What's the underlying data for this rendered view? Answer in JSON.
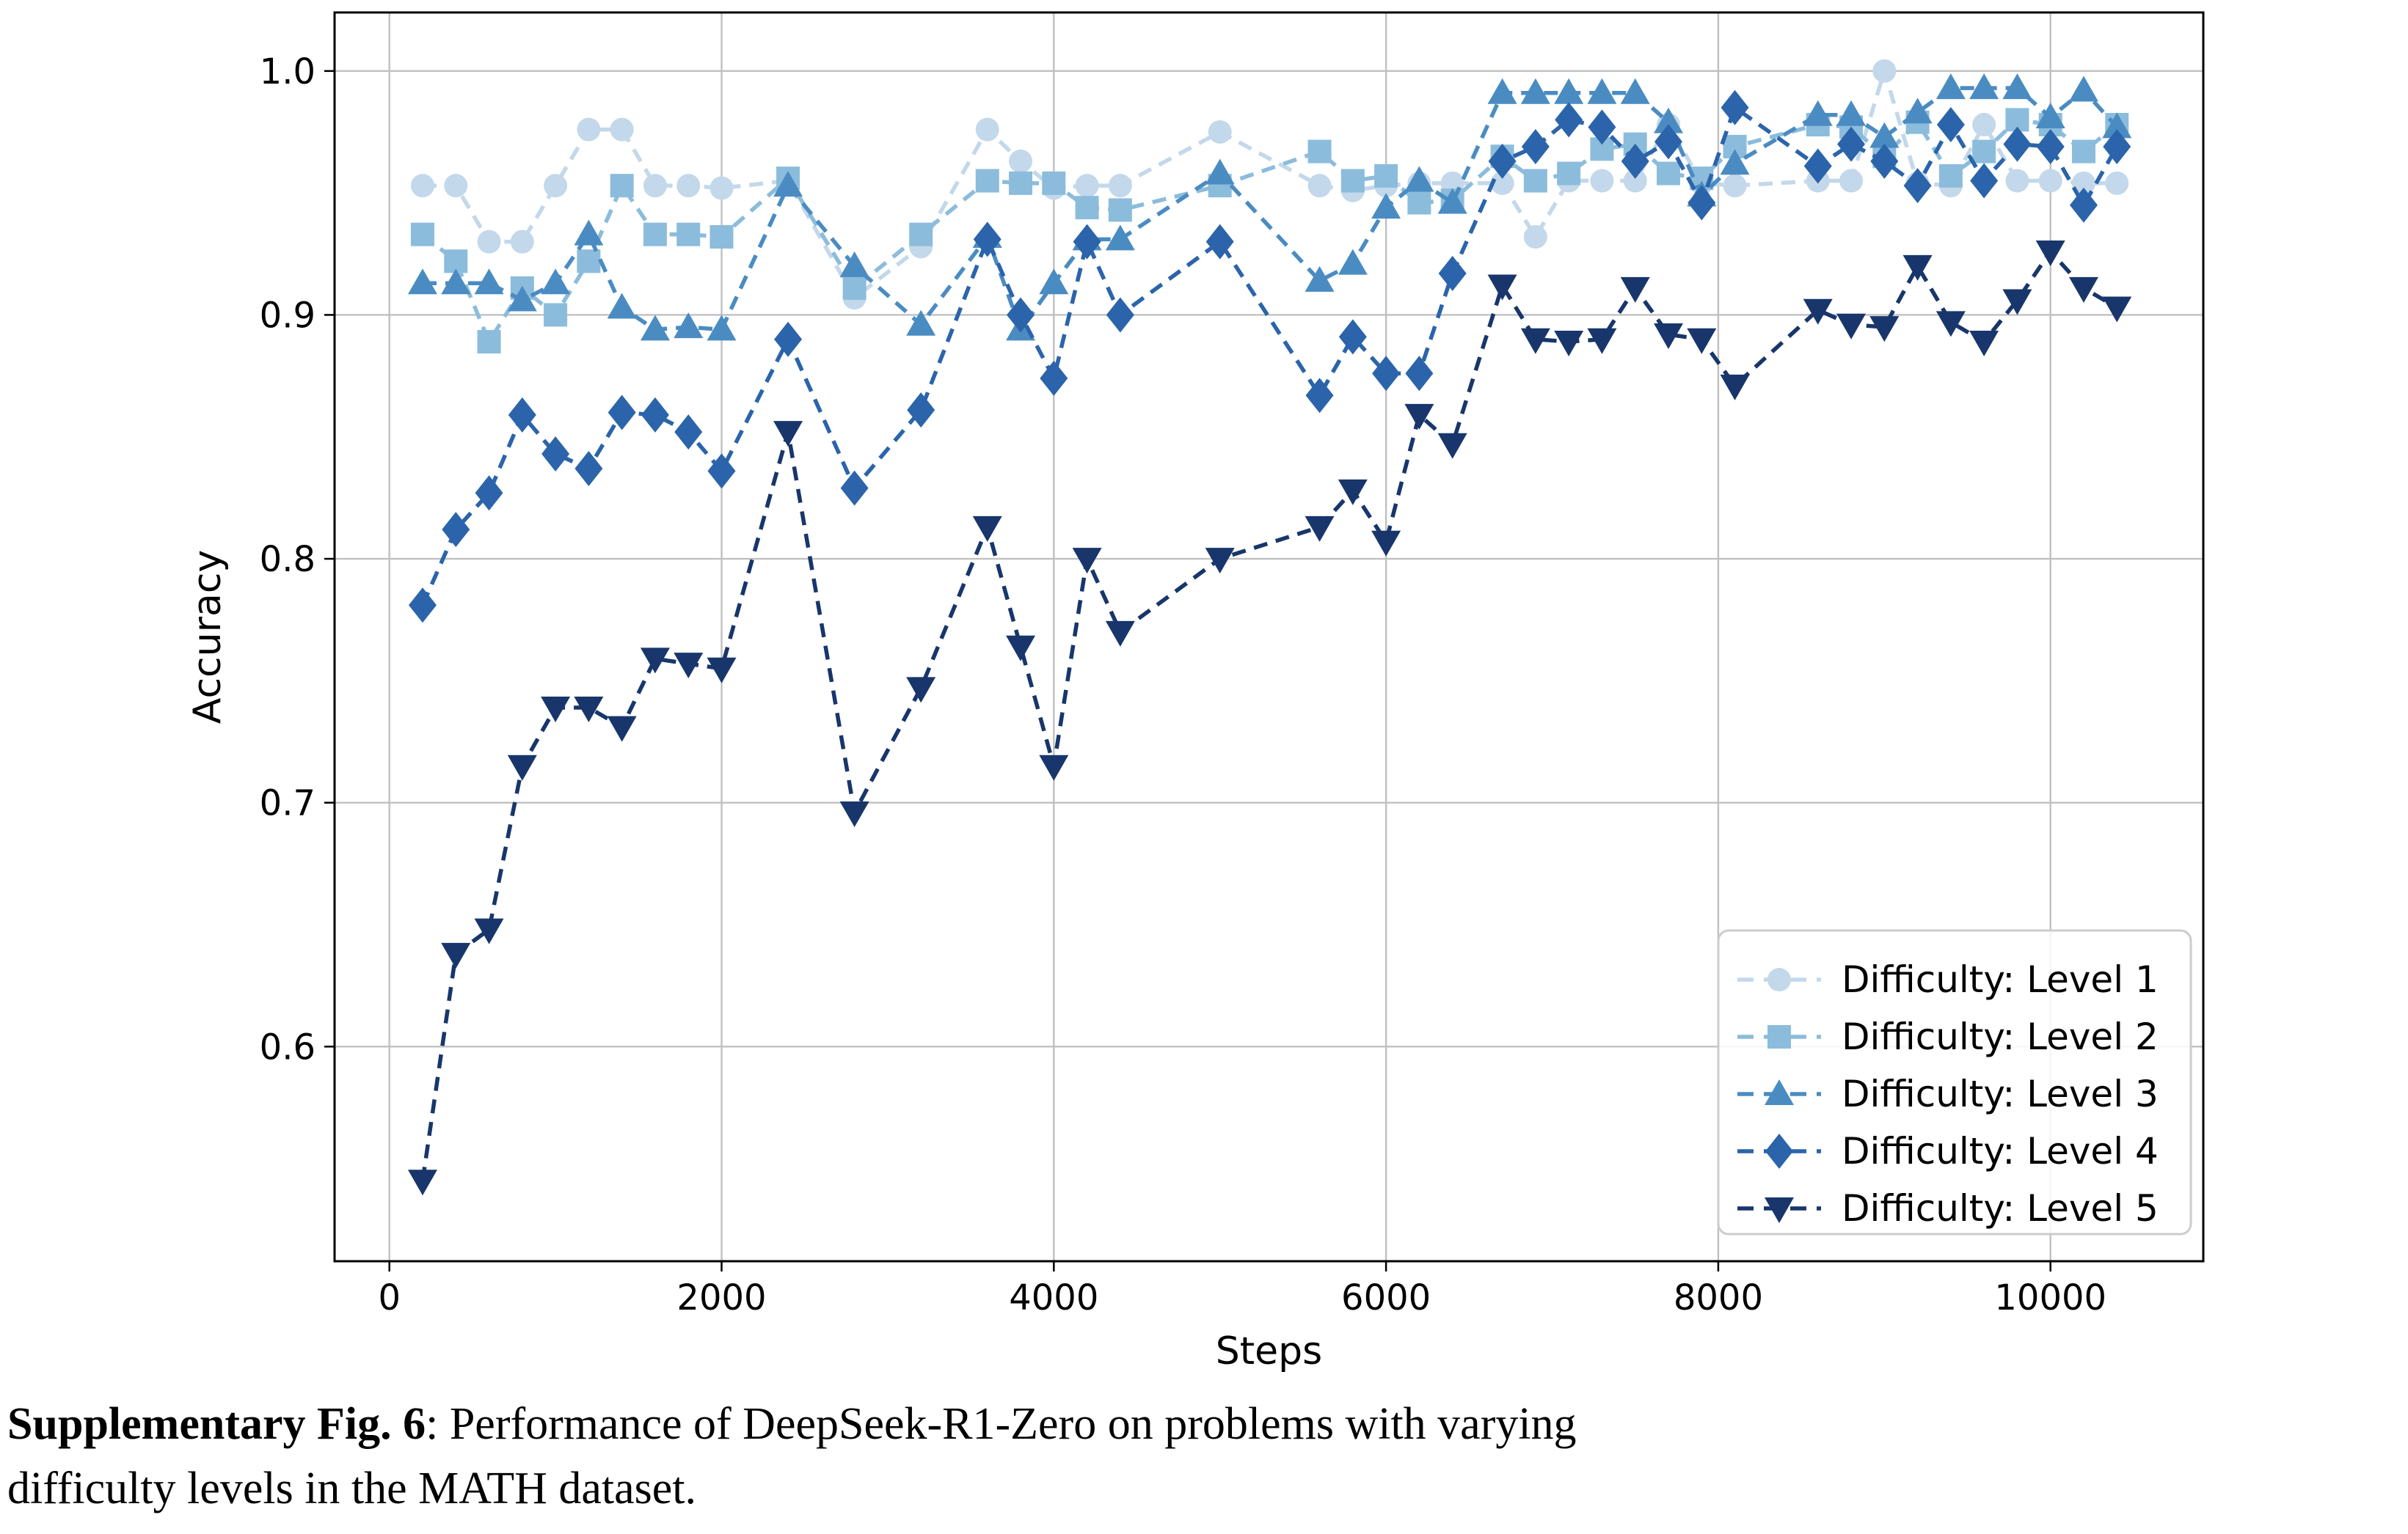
{
  "caption": {
    "bold": "Supplementary Fig. 6",
    "rest": ": Performance of DeepSeek-R1-Zero on problems with varying",
    "line2": "difficulty levels in the MATH dataset."
  },
  "chart_data": {
    "type": "line",
    "title": "",
    "xlabel": "Steps",
    "ylabel": "Accuracy",
    "x_ticks": [
      0,
      2000,
      4000,
      6000,
      8000,
      10000
    ],
    "y_ticks": [
      0.6,
      0.7,
      0.8,
      0.9,
      1.0
    ],
    "xlim": [
      -330,
      10920
    ],
    "ylim": [
      0.512,
      1.024
    ],
    "grid": true,
    "grid_color": "#c0c0c0",
    "legend_position": "lower right",
    "line_style": "dashed",
    "x": [
      200,
      400,
      600,
      800,
      1000,
      1200,
      1400,
      1600,
      1800,
      2000,
      2400,
      2800,
      3200,
      3600,
      3800,
      4000,
      4200,
      4400,
      5000,
      5600,
      5800,
      6000,
      6200,
      6400,
      6700,
      6900,
      7100,
      7300,
      7500,
      7700,
      7900,
      8100,
      8600,
      8800,
      9000,
      9200,
      9400,
      9600,
      9800,
      10000,
      10200,
      10400
    ],
    "series": [
      {
        "name": "Difficulty: Level 1",
        "marker": "circle",
        "color": "#c3d8ea",
        "values": [
          0.953,
          0.953,
          0.93,
          0.93,
          0.953,
          0.976,
          0.976,
          0.953,
          0.953,
          0.952,
          0.955,
          0.907,
          0.928,
          0.976,
          0.963,
          0.952,
          0.953,
          0.953,
          0.975,
          0.953,
          0.951,
          0.953,
          0.954,
          0.954,
          0.954,
          0.932,
          0.955,
          0.955,
          0.955,
          0.978,
          0.954,
          0.953,
          0.955,
          0.955,
          1.0,
          0.954,
          0.953,
          0.978,
          0.955,
          0.955,
          0.954,
          0.954
        ]
      },
      {
        "name": "Difficulty: Level 2",
        "marker": "square",
        "color": "#8cbcdc",
        "values": [
          0.933,
          0.922,
          0.889,
          0.911,
          0.9,
          0.922,
          0.953,
          0.933,
          0.933,
          0.932,
          0.956,
          0.911,
          0.933,
          0.955,
          0.954,
          0.954,
          0.944,
          0.943,
          0.953,
          0.967,
          0.955,
          0.957,
          0.946,
          0.947,
          0.965,
          0.955,
          0.958,
          0.968,
          0.97,
          0.958,
          0.956,
          0.969,
          0.978,
          0.977,
          0.965,
          0.979,
          0.957,
          0.967,
          0.98,
          0.978,
          0.967,
          0.978
        ]
      },
      {
        "name": "Difficulty: Level 3",
        "marker": "triangle-up",
        "color": "#4a8cc2",
        "values": [
          0.913,
          0.913,
          0.913,
          0.906,
          0.913,
          0.933,
          0.903,
          0.894,
          0.895,
          0.894,
          0.953,
          0.92,
          0.896,
          0.932,
          0.894,
          0.913,
          0.931,
          0.931,
          0.958,
          0.914,
          0.921,
          0.944,
          0.955,
          0.946,
          0.991,
          0.991,
          0.991,
          0.991,
          0.991,
          0.979,
          0.949,
          0.962,
          0.982,
          0.982,
          0.973,
          0.983,
          0.993,
          0.993,
          0.993,
          0.981,
          0.992,
          0.977
        ]
      },
      {
        "name": "Difficulty: Level 4",
        "marker": "diamond",
        "color": "#2b64aa",
        "values": [
          0.781,
          0.812,
          0.827,
          0.859,
          0.843,
          0.837,
          0.86,
          0.859,
          0.852,
          0.836,
          0.89,
          0.829,
          0.861,
          0.931,
          0.9,
          0.874,
          0.93,
          0.9,
          0.93,
          0.867,
          0.891,
          0.876,
          0.876,
          0.917,
          0.963,
          0.969,
          0.98,
          0.977,
          0.963,
          0.971,
          0.946,
          0.985,
          0.961,
          0.97,
          0.963,
          0.953,
          0.978,
          0.955,
          0.97,
          0.969,
          0.945,
          0.969
        ]
      },
      {
        "name": "Difficulty: Level 5",
        "marker": "triangle-down",
        "color": "#18366b",
        "values": [
          0.545,
          0.638,
          0.648,
          0.715,
          0.739,
          0.739,
          0.731,
          0.759,
          0.757,
          0.755,
          0.852,
          0.696,
          0.747,
          0.813,
          0.764,
          0.715,
          0.8,
          0.77,
          0.8,
          0.813,
          0.828,
          0.807,
          0.859,
          0.847,
          0.912,
          0.89,
          0.889,
          0.89,
          0.911,
          0.892,
          0.89,
          0.871,
          0.902,
          0.896,
          0.895,
          0.92,
          0.897,
          0.889,
          0.906,
          0.926,
          0.911,
          0.903
        ]
      }
    ]
  }
}
